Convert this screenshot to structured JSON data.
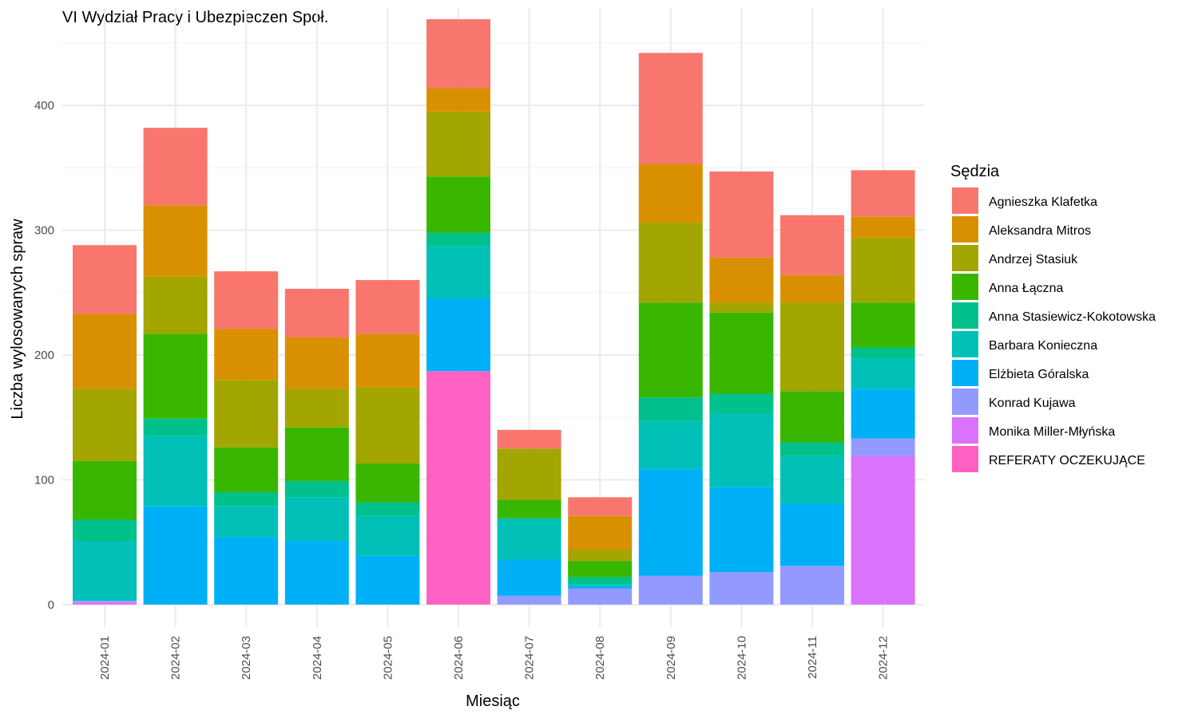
{
  "chart_data": {
    "type": "bar",
    "stacked": true,
    "title": "VI Wydział Pracy i Ubezpieczen Społ.",
    "xlabel": "Miesiąc",
    "ylabel": "Liczba wylosowanych spraw",
    "ylim": [
      -18,
      478
    ],
    "yticks": [
      0,
      100,
      200,
      300,
      400
    ],
    "grid": true,
    "legend_position": "right",
    "legend_title": "Sędzia",
    "categories": [
      "2024-01",
      "2024-02",
      "2024-03",
      "2024-04",
      "2024-05",
      "2024-06",
      "2024-07",
      "2024-08",
      "2024-09",
      "2024-10",
      "2024-11",
      "2024-12"
    ],
    "series": [
      {
        "name": "REFERATY OCZEKUJĄCE",
        "color": "#FF61C3",
        "values": [
          0,
          0,
          0,
          0,
          0,
          187,
          0,
          0,
          0,
          0,
          0,
          0
        ]
      },
      {
        "name": "Monika Miller-Młyńska",
        "color": "#DB72FB",
        "values": [
          2,
          0,
          0,
          0,
          0,
          0,
          0,
          0,
          0,
          0,
          0,
          119
        ]
      },
      {
        "name": "Konrad Kujawa",
        "color": "#939AFF",
        "values": [
          1,
          0,
          0,
          0,
          0,
          0,
          7,
          13,
          23,
          26,
          31,
          14
        ]
      },
      {
        "name": "Elżbieta Góralska",
        "color": "#00B0F6",
        "values": [
          0,
          79,
          54,
          51,
          39,
          58,
          29,
          2,
          86,
          68,
          50,
          40
        ]
      },
      {
        "name": "Barbara Konieczna",
        "color": "#00C0B8",
        "values": [
          48,
          56,
          25,
          35,
          32,
          42,
          33,
          1,
          38,
          59,
          38,
          24
        ]
      },
      {
        "name": "Anna Stasiewicz-Kokotowska",
        "color": "#00C08B",
        "values": [
          17,
          14,
          11,
          13,
          11,
          11,
          0,
          6,
          19,
          16,
          11,
          9
        ]
      },
      {
        "name": "Anna Łączna",
        "color": "#39B600",
        "values": [
          47,
          68,
          36,
          43,
          31,
          45,
          15,
          13,
          76,
          65,
          41,
          36
        ]
      },
      {
        "name": "Andrzej Stasiuk",
        "color": "#A3A500",
        "values": [
          58,
          46,
          54,
          31,
          61,
          52,
          41,
          9,
          64,
          8,
          71,
          52
        ]
      },
      {
        "name": "Aleksandra Mitros",
        "color": "#D89000",
        "values": [
          60,
          57,
          41,
          41,
          43,
          19,
          0,
          27,
          47,
          36,
          22,
          17
        ]
      },
      {
        "name": "Agnieszka Klafetka",
        "color": "#F8766D",
        "values": [
          55,
          62,
          46,
          39,
          43,
          55,
          15,
          15,
          89,
          69,
          48,
          37
        ]
      }
    ]
  }
}
